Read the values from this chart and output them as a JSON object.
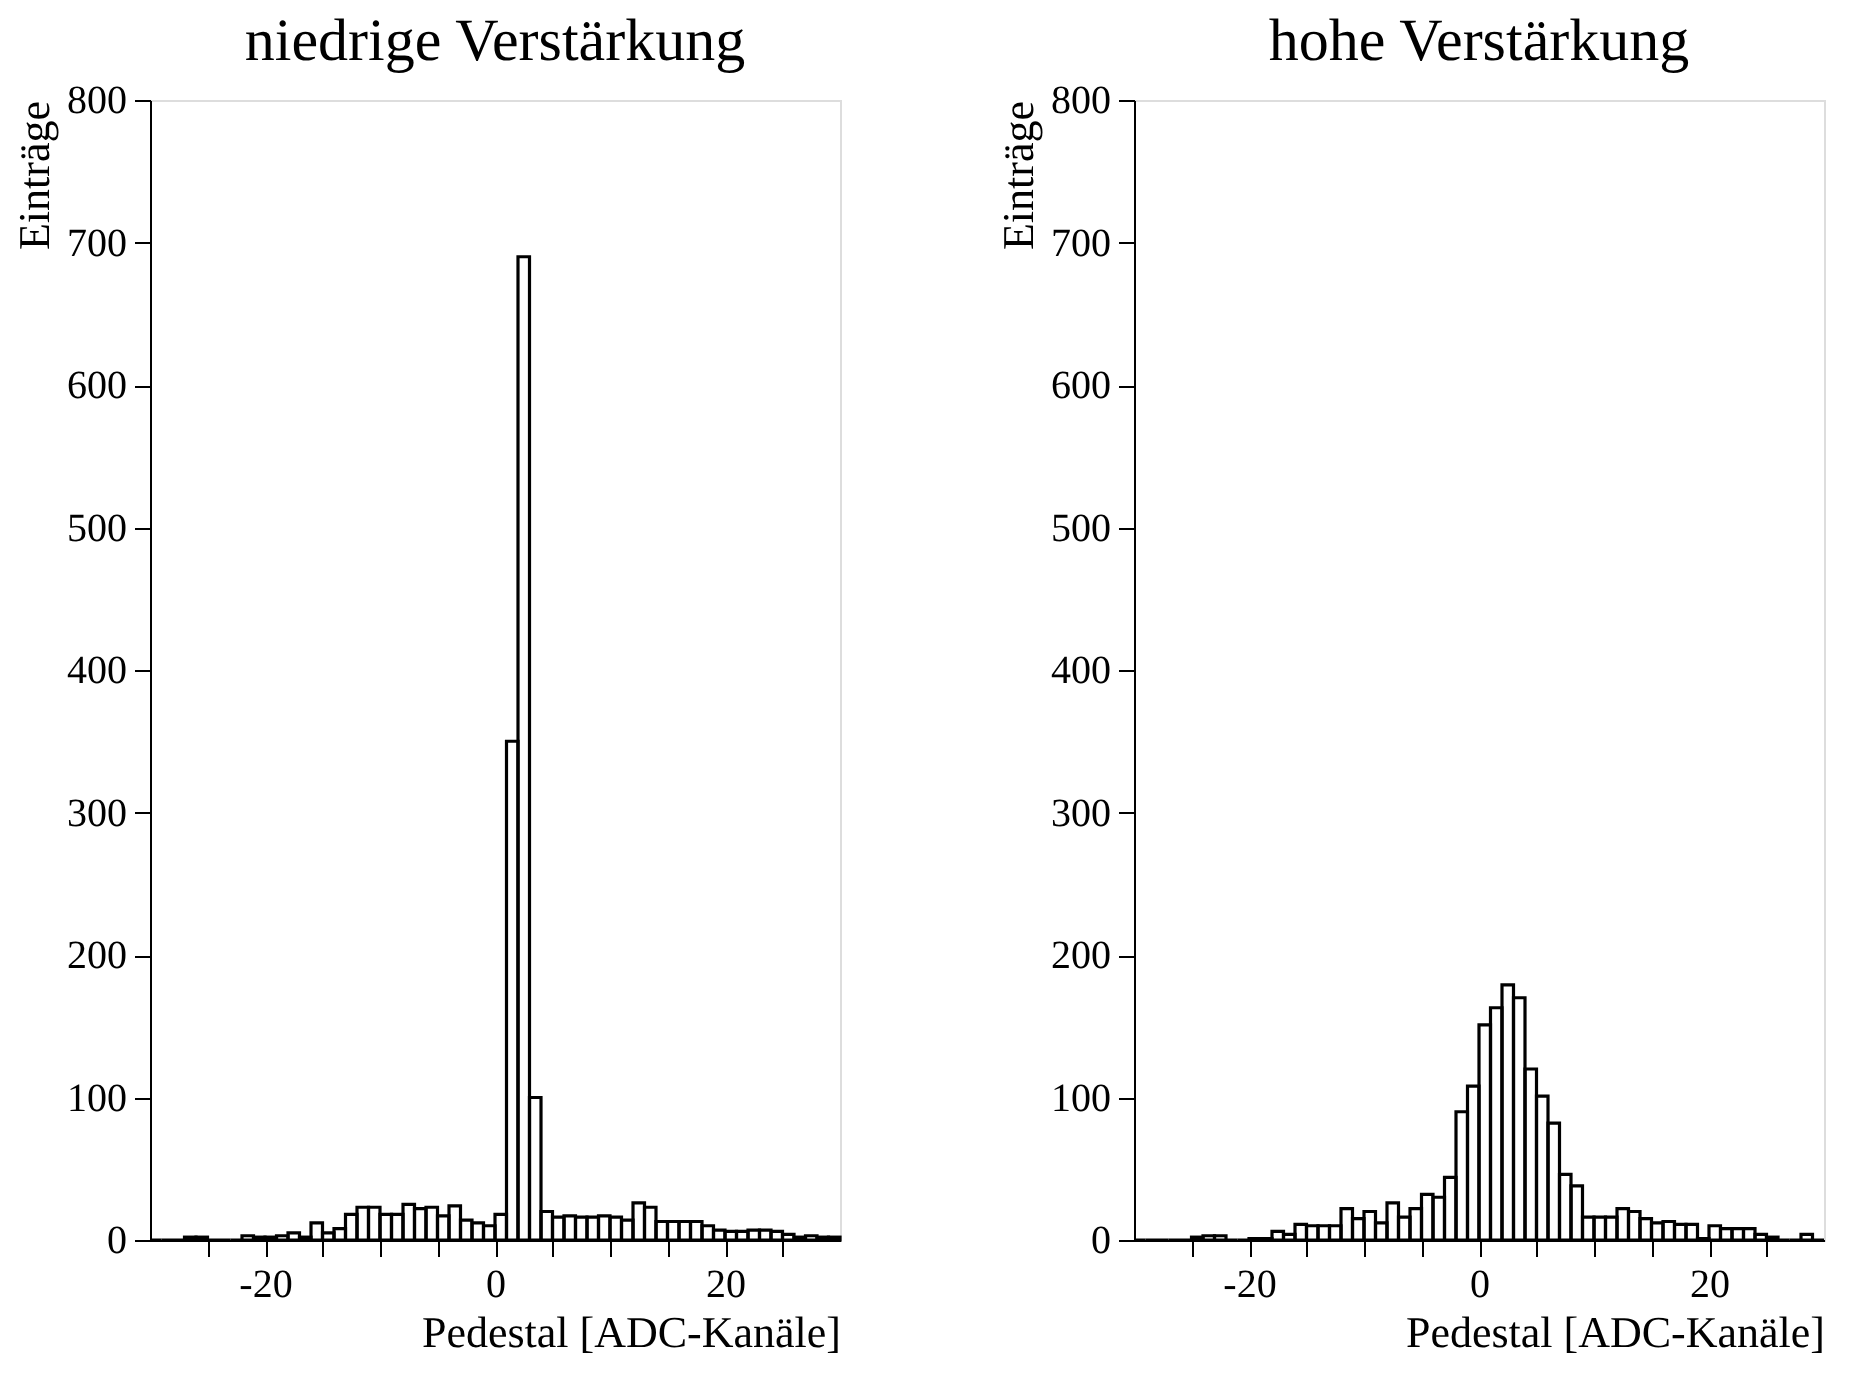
{
  "chart_data": [
    {
      "type": "histogram",
      "title": "niedrige Verstärkung",
      "xlabel": "Pedestal [ADC-Kanäle]",
      "ylabel": "Einträge",
      "bins": [
        -30,
        -29,
        -28,
        -27,
        -26,
        -25,
        -24,
        -23,
        -22,
        -21,
        -20,
        -19,
        -18,
        -17,
        -16,
        -15,
        -14,
        -13,
        -12,
        -11,
        -10,
        -9,
        -8,
        -7,
        -6,
        -5,
        -4,
        -3,
        -2,
        -1,
        0,
        1,
        2,
        3,
        4,
        5,
        6,
        7,
        8,
        9,
        10,
        11,
        12,
        13,
        14,
        15,
        16,
        17,
        18,
        19,
        20,
        21,
        22,
        23,
        24,
        25,
        26,
        27,
        28,
        29,
        30
      ],
      "values": [
        0,
        0,
        0,
        2,
        2,
        0,
        0,
        0,
        3,
        2,
        2,
        3,
        5,
        2,
        12,
        5,
        8,
        18,
        23,
        23,
        18,
        18,
        25,
        22,
        23,
        17,
        24,
        14,
        12,
        10,
        18,
        350,
        690,
        100,
        20,
        16,
        17,
        16,
        16,
        17,
        16,
        14,
        26,
        23,
        13,
        13,
        13,
        13,
        10,
        7,
        6,
        6,
        7,
        7,
        6,
        4,
        2,
        3,
        2,
        2
      ],
      "color": "#000000",
      "xlim": [
        -30,
        30
      ],
      "ylim": [
        0,
        800
      ],
      "xticks": [
        {
          "value": -25,
          "label": null
        },
        -20,
        {
          "value": -15,
          "label": null
        },
        {
          "value": -10,
          "label": null
        },
        {
          "value": -5,
          "label": null
        },
        0,
        {
          "value": 5,
          "label": null
        },
        {
          "value": 10,
          "label": null
        },
        {
          "value": 15,
          "label": null
        },
        20,
        {
          "value": 25,
          "label": null
        }
      ],
      "yticks": [
        0,
        100,
        200,
        300,
        400,
        500,
        600,
        700,
        800
      ],
      "grid": false
    },
    {
      "type": "histogram",
      "title": "hohe Verstärkung",
      "xlabel": "Pedestal [ADC-Kanäle]",
      "ylabel": "Einträge",
      "bins": [
        -30,
        -29,
        -28,
        -27,
        -26,
        -25,
        -24,
        -23,
        -22,
        -21,
        -20,
        -19,
        -18,
        -17,
        -16,
        -15,
        -14,
        -13,
        -12,
        -11,
        -10,
        -9,
        -8,
        -7,
        -6,
        -5,
        -4,
        -3,
        -2,
        -1,
        0,
        1,
        2,
        3,
        4,
        5,
        6,
        7,
        8,
        9,
        10,
        11,
        12,
        13,
        14,
        15,
        16,
        17,
        18,
        19,
        20,
        21,
        22,
        23,
        24,
        25,
        26,
        27,
        28,
        29,
        30
      ],
      "values": [
        0,
        0,
        0,
        0,
        0,
        2,
        3,
        3,
        0,
        0,
        1,
        1,
        6,
        4,
        11,
        10,
        10,
        10,
        22,
        15,
        20,
        12,
        26,
        16,
        22,
        32,
        30,
        44,
        90,
        108,
        151,
        163,
        179,
        170,
        120,
        101,
        82,
        46,
        38,
        16,
        16,
        16,
        22,
        20,
        15,
        12,
        13,
        11,
        11,
        1,
        10,
        8,
        8,
        8,
        4,
        2,
        0,
        0,
        4,
        0
      ],
      "color": "#000000",
      "xlim": [
        -30,
        30
      ],
      "ylim": [
        0,
        800
      ],
      "xticks": [
        {
          "value": -25,
          "label": null
        },
        -20,
        {
          "value": -15,
          "label": null
        },
        {
          "value": -10,
          "label": null
        },
        {
          "value": -5,
          "label": null
        },
        0,
        {
          "value": 5,
          "label": null
        },
        {
          "value": 10,
          "label": null
        },
        {
          "value": 15,
          "label": null
        },
        20,
        {
          "value": 25,
          "label": null
        }
      ],
      "yticks": [
        0,
        100,
        200,
        300,
        400,
        500,
        600,
        700,
        800
      ],
      "grid": false
    }
  ]
}
